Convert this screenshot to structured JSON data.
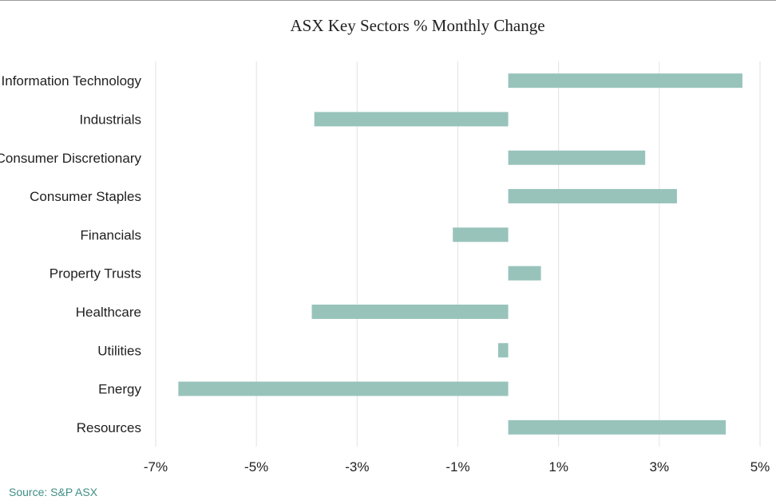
{
  "chart_data": {
    "type": "bar",
    "orientation": "horizontal",
    "title": "ASX Key Sectors % Monthly Change",
    "xlabel": "",
    "ylabel": "",
    "categories": [
      "Information Technology",
      "Industrials",
      "Consumer Discretionary",
      "Consumer Staples",
      "Financials",
      "Property Trusts",
      "Healthcare",
      "Utilities",
      "Energy",
      "Resources"
    ],
    "values": [
      4.65,
      -3.85,
      2.72,
      3.35,
      -1.1,
      0.65,
      -3.9,
      -0.2,
      -6.55,
      4.32
    ],
    "xlim": [
      -7,
      5
    ],
    "xticks": [
      -7,
      -5,
      -3,
      -1,
      1,
      3,
      5
    ],
    "xtick_labels": [
      "-7%",
      "-5%",
      "-3%",
      "-1%",
      "1%",
      "3%",
      "5%"
    ],
    "grid": "vertical",
    "bar_color": "#98c3bb"
  },
  "footer": {
    "source": "Source: S&P ASX"
  }
}
